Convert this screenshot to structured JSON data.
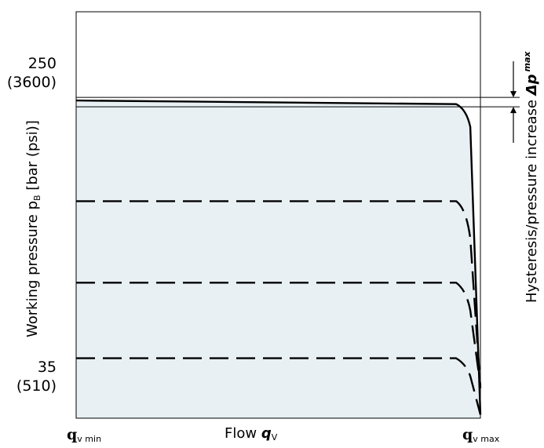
{
  "chart_data": {
    "type": "line",
    "title": "",
    "xlabel": "Flow",
    "xlabel_symbol": "q",
    "xlabel_symbol_sub": "V",
    "ylabel": "Working pressure p",
    "ylabel_sub": "B",
    "ylabel_unit": " [bar (psi)]",
    "x_tick_labels": [
      {
        "main": "q",
        "sub": "v min"
      },
      {
        "main": "q",
        "sub": "v max"
      }
    ],
    "y_ticks": [
      {
        "value": 250,
        "label": "250",
        "label2": "(3600)"
      },
      {
        "value": 35,
        "label": "35",
        "label2": "(510)"
      }
    ],
    "ylim": [
      -15,
      324
    ],
    "xlim": [
      0,
      1
    ],
    "series": [
      {
        "style": "solid",
        "values": [
          [
            0,
            250
          ],
          [
            0.94,
            247
          ],
          [
            0.965,
            243
          ],
          [
            0.975,
            228
          ],
          [
            1.0,
            -12
          ]
        ]
      },
      {
        "style": "dashed",
        "values": [
          [
            0,
            166
          ],
          [
            0.94,
            166
          ],
          [
            0.965,
            160
          ],
          [
            0.975,
            135
          ],
          [
            1.0,
            10
          ]
        ]
      },
      {
        "style": "dashed",
        "values": [
          [
            0,
            98
          ],
          [
            0.94,
            98
          ],
          [
            0.965,
            92
          ],
          [
            0.975,
            75
          ],
          [
            1.0,
            12
          ]
        ]
      },
      {
        "style": "dashed",
        "values": [
          [
            0,
            35
          ],
          [
            0.94,
            35
          ],
          [
            0.965,
            30
          ],
          [
            0.975,
            20
          ],
          [
            1.0,
            -12
          ]
        ]
      }
    ],
    "fill_color": "#e8f0f3",
    "line_color": "#000000",
    "hysteresis": {
      "label": "Hysteresis/pressure increase ",
      "symbol": "Δp",
      "symbol_sub": "max"
    },
    "grid": false,
    "legend": "none"
  }
}
